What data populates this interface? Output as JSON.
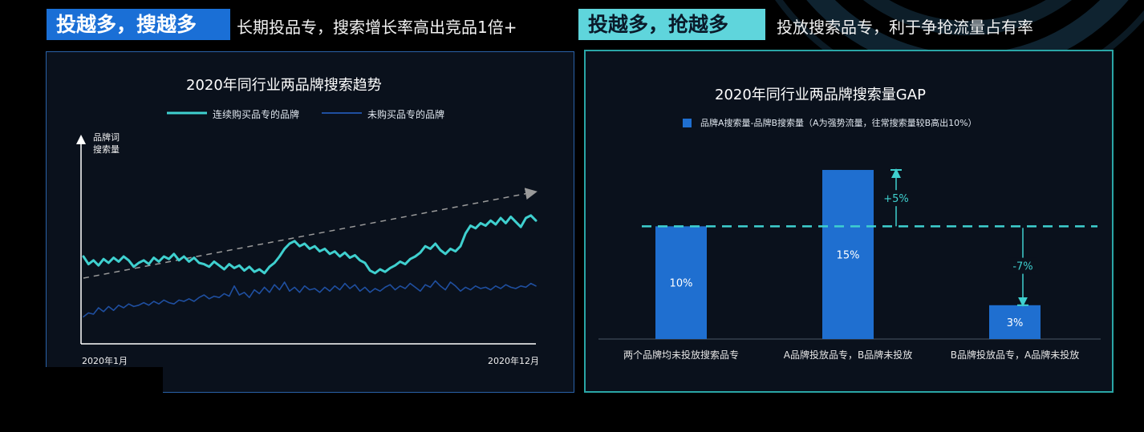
{
  "header": {
    "tag1": "投越多，搜越多",
    "caption1": "长期投品专，搜索增长率高出竞品1倍+",
    "tag2": "投越多，抢越多",
    "caption2": "投放搜索品专，利于争抢流量占有率"
  },
  "colors": {
    "accent_blue": "#1a6fd6",
    "accent_cyan": "#5fd5dc",
    "line_primary": "#3fd0cf",
    "line_secondary": "#1f4fa0",
    "bar_fill": "#1f6fd0"
  },
  "chart_data": [
    {
      "type": "line",
      "title": "2020年同行业两品牌搜索趋势",
      "ylabel_line1": "品牌词",
      "ylabel_line2": "搜索量",
      "xlabel_start": "2020年1月",
      "xlabel_end": "2020年12月",
      "legend_position": "top",
      "grid": false,
      "x_range": [
        0,
        1
      ],
      "ylim": [
        0,
        1
      ],
      "series": [
        {
          "name": "连续购买品专的品牌",
          "color": "#3fd0cf",
          "values": [
            0.5,
            0.44,
            0.47,
            0.43,
            0.48,
            0.45,
            0.49,
            0.46,
            0.5,
            0.47,
            0.42,
            0.45,
            0.47,
            0.44,
            0.49,
            0.46,
            0.5,
            0.48,
            0.52,
            0.47,
            0.5,
            0.46,
            0.49,
            0.45,
            0.44,
            0.42,
            0.46,
            0.43,
            0.4,
            0.44,
            0.41,
            0.43,
            0.39,
            0.42,
            0.38,
            0.4,
            0.37,
            0.42,
            0.45,
            0.5,
            0.56,
            0.6,
            0.62,
            0.58,
            0.6,
            0.56,
            0.58,
            0.54,
            0.56,
            0.52,
            0.54,
            0.5,
            0.53,
            0.49,
            0.51,
            0.47,
            0.45,
            0.39,
            0.37,
            0.4,
            0.38,
            0.41,
            0.43,
            0.46,
            0.44,
            0.48,
            0.5,
            0.53,
            0.58,
            0.56,
            0.6,
            0.55,
            0.52,
            0.56,
            0.54,
            0.58,
            0.68,
            0.74,
            0.72,
            0.76,
            0.74,
            0.78,
            0.75,
            0.8,
            0.76,
            0.81,
            0.77,
            0.73,
            0.8,
            0.82,
            0.78
          ]
        },
        {
          "name": "未购买品专的品牌",
          "color": "#1f4fa0",
          "values": [
            0.03,
            0.06,
            0.05,
            0.1,
            0.07,
            0.11,
            0.08,
            0.12,
            0.1,
            0.13,
            0.11,
            0.12,
            0.14,
            0.12,
            0.15,
            0.13,
            0.16,
            0.14,
            0.13,
            0.16,
            0.15,
            0.17,
            0.15,
            0.18,
            0.2,
            0.17,
            0.19,
            0.18,
            0.21,
            0.19,
            0.27,
            0.2,
            0.22,
            0.18,
            0.24,
            0.21,
            0.26,
            0.22,
            0.28,
            0.24,
            0.3,
            0.23,
            0.26,
            0.22,
            0.27,
            0.24,
            0.25,
            0.22,
            0.26,
            0.23,
            0.27,
            0.24,
            0.29,
            0.25,
            0.28,
            0.23,
            0.26,
            0.22,
            0.25,
            0.23,
            0.26,
            0.28,
            0.24,
            0.27,
            0.25,
            0.29,
            0.26,
            0.23,
            0.28,
            0.26,
            0.31,
            0.27,
            0.24,
            0.3,
            0.27,
            0.23,
            0.26,
            0.24,
            0.27,
            0.25,
            0.26,
            0.24,
            0.27,
            0.25,
            0.28,
            0.26,
            0.25,
            0.27,
            0.26,
            0.29,
            0.27
          ]
        }
      ]
    },
    {
      "type": "bar",
      "title": "2020年同行业两品牌搜索量GAP",
      "legend_label": "品牌A搜索量-品牌B搜索量（A为强势流量，往常搜索量较B高出10%）",
      "legend_position": "top",
      "grid": false,
      "categories": [
        "两个品牌均未投放搜索品专",
        "A品牌投放品专，B品牌未投放",
        "B品牌投放品专，A品牌未投放"
      ],
      "values": [
        10,
        15,
        3
      ],
      "value_labels": [
        "10%",
        "15%",
        "3%"
      ],
      "ylim": [
        0,
        15.5
      ],
      "baseline_value": 10,
      "annotations": [
        {
          "text": "+5%",
          "from": 10,
          "to": 15,
          "category_index": 1
        },
        {
          "text": "-7%",
          "from": 10,
          "to": 3,
          "category_index": 2
        }
      ]
    }
  ]
}
